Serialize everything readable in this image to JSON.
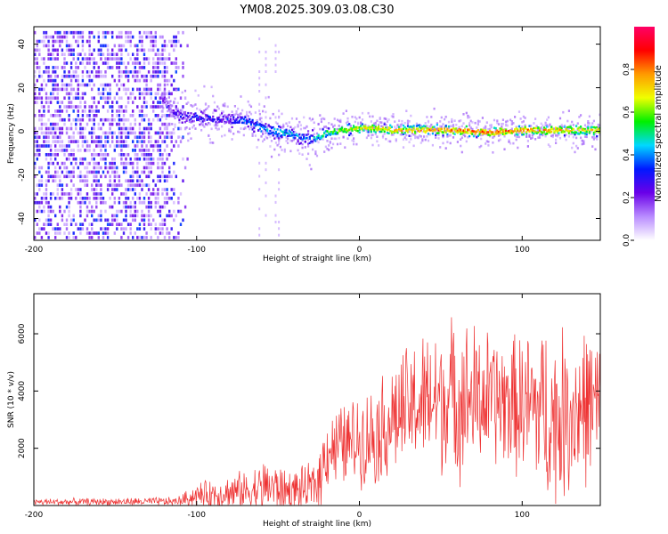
{
  "figure": {
    "title": "YM08.2025.309.03.08.C30"
  },
  "chart_data": [
    {
      "type": "heatmap",
      "title": "YM08.2025.309.03.08.C30",
      "xlabel": "Height of straight line (km)",
      "ylabel": "Frequency (Hz)",
      "xlim": [
        -200,
        148
      ],
      "ylim": [
        -50,
        48
      ],
      "x_ticks": [
        -200,
        -100,
        0,
        100
      ],
      "y_ticks": [
        -40,
        -20,
        0,
        20,
        40
      ],
      "colorbar": {
        "label": "Normalized spectral amplitude",
        "range": [
          0,
          1
        ],
        "ticks": [
          0.0,
          0.2,
          0.4,
          0.6,
          0.8
        ],
        "colormap": [
          "#ffffff",
          "#b98cff",
          "#6a00e8",
          "#0018ff",
          "#00d8ff",
          "#00f000",
          "#f0ff00",
          "#ff9a00",
          "#ff0000",
          "#ff0066"
        ]
      },
      "noise_region_x": [
        -200,
        -110
      ],
      "noise_amplitude": 0.3,
      "ridge": {
        "x": [
          -122,
          -115,
          -110,
          -100,
          -90,
          -80,
          -70,
          -60,
          -50,
          -40,
          -35,
          -30,
          -20,
          -10,
          0,
          10,
          20,
          40,
          60,
          80,
          100,
          120,
          148
        ],
        "freq": [
          16,
          10,
          7,
          7,
          7,
          6,
          5,
          2,
          0,
          -1,
          -3,
          -3,
          0,
          1,
          2,
          2,
          1,
          1,
          1,
          0,
          1,
          1,
          1
        ],
        "amplitude": [
          0.15,
          0.2,
          0.25,
          0.3,
          0.3,
          0.28,
          0.35,
          0.4,
          0.45,
          0.4,
          0.35,
          0.4,
          0.55,
          0.65,
          0.7,
          0.72,
          0.75,
          0.78,
          0.8,
          0.85,
          0.82,
          0.78,
          0.72
        ]
      },
      "stripes_x": [
        -62,
        -58,
        -52,
        -50
      ]
    },
    {
      "type": "line",
      "xlabel": "Height of straight line (km)",
      "ylabel": "SNR (10 * v/v)",
      "xlim": [
        -200,
        148
      ],
      "ylim": [
        0,
        7400
      ],
      "x_ticks": [
        -200,
        -100,
        0,
        100
      ],
      "y_ticks": [
        2000,
        4000,
        6000
      ],
      "color": "#ee3333",
      "series": [
        {
          "name": "SNR",
          "envelope": {
            "x": [
              -200,
              -150,
              -112,
              -100,
              -90,
              -80,
              -70,
              -60,
              -55,
              -50,
              -40,
              -30,
              -25,
              -20,
              -10,
              0,
              10,
              20,
              30,
              40,
              50,
              60,
              70,
              80,
              90,
              100,
              110,
              115,
              120,
              130,
              140,
              148
            ],
            "mean": [
              120,
              130,
              140,
              350,
              400,
              450,
              500,
              600,
              700,
              550,
              500,
              600,
              900,
              2000,
              2100,
              2300,
              2500,
              3000,
              3400,
              3600,
              3700,
              3800,
              3750,
              3700,
              3600,
              3500,
              3400,
              3200,
              3000,
              3300,
              3500,
              3400
            ],
            "spread": [
              120,
              120,
              150,
              400,
              500,
              600,
              700,
              900,
              1000,
              800,
              700,
              800,
              1000,
              1300,
              1400,
              1500,
              1700,
              1900,
              2100,
              2300,
              2500,
              2700,
              2500,
              2300,
              2200,
              2400,
              2800,
              3000,
              2900,
              2800,
              2600,
              2500
            ]
          }
        }
      ]
    }
  ]
}
